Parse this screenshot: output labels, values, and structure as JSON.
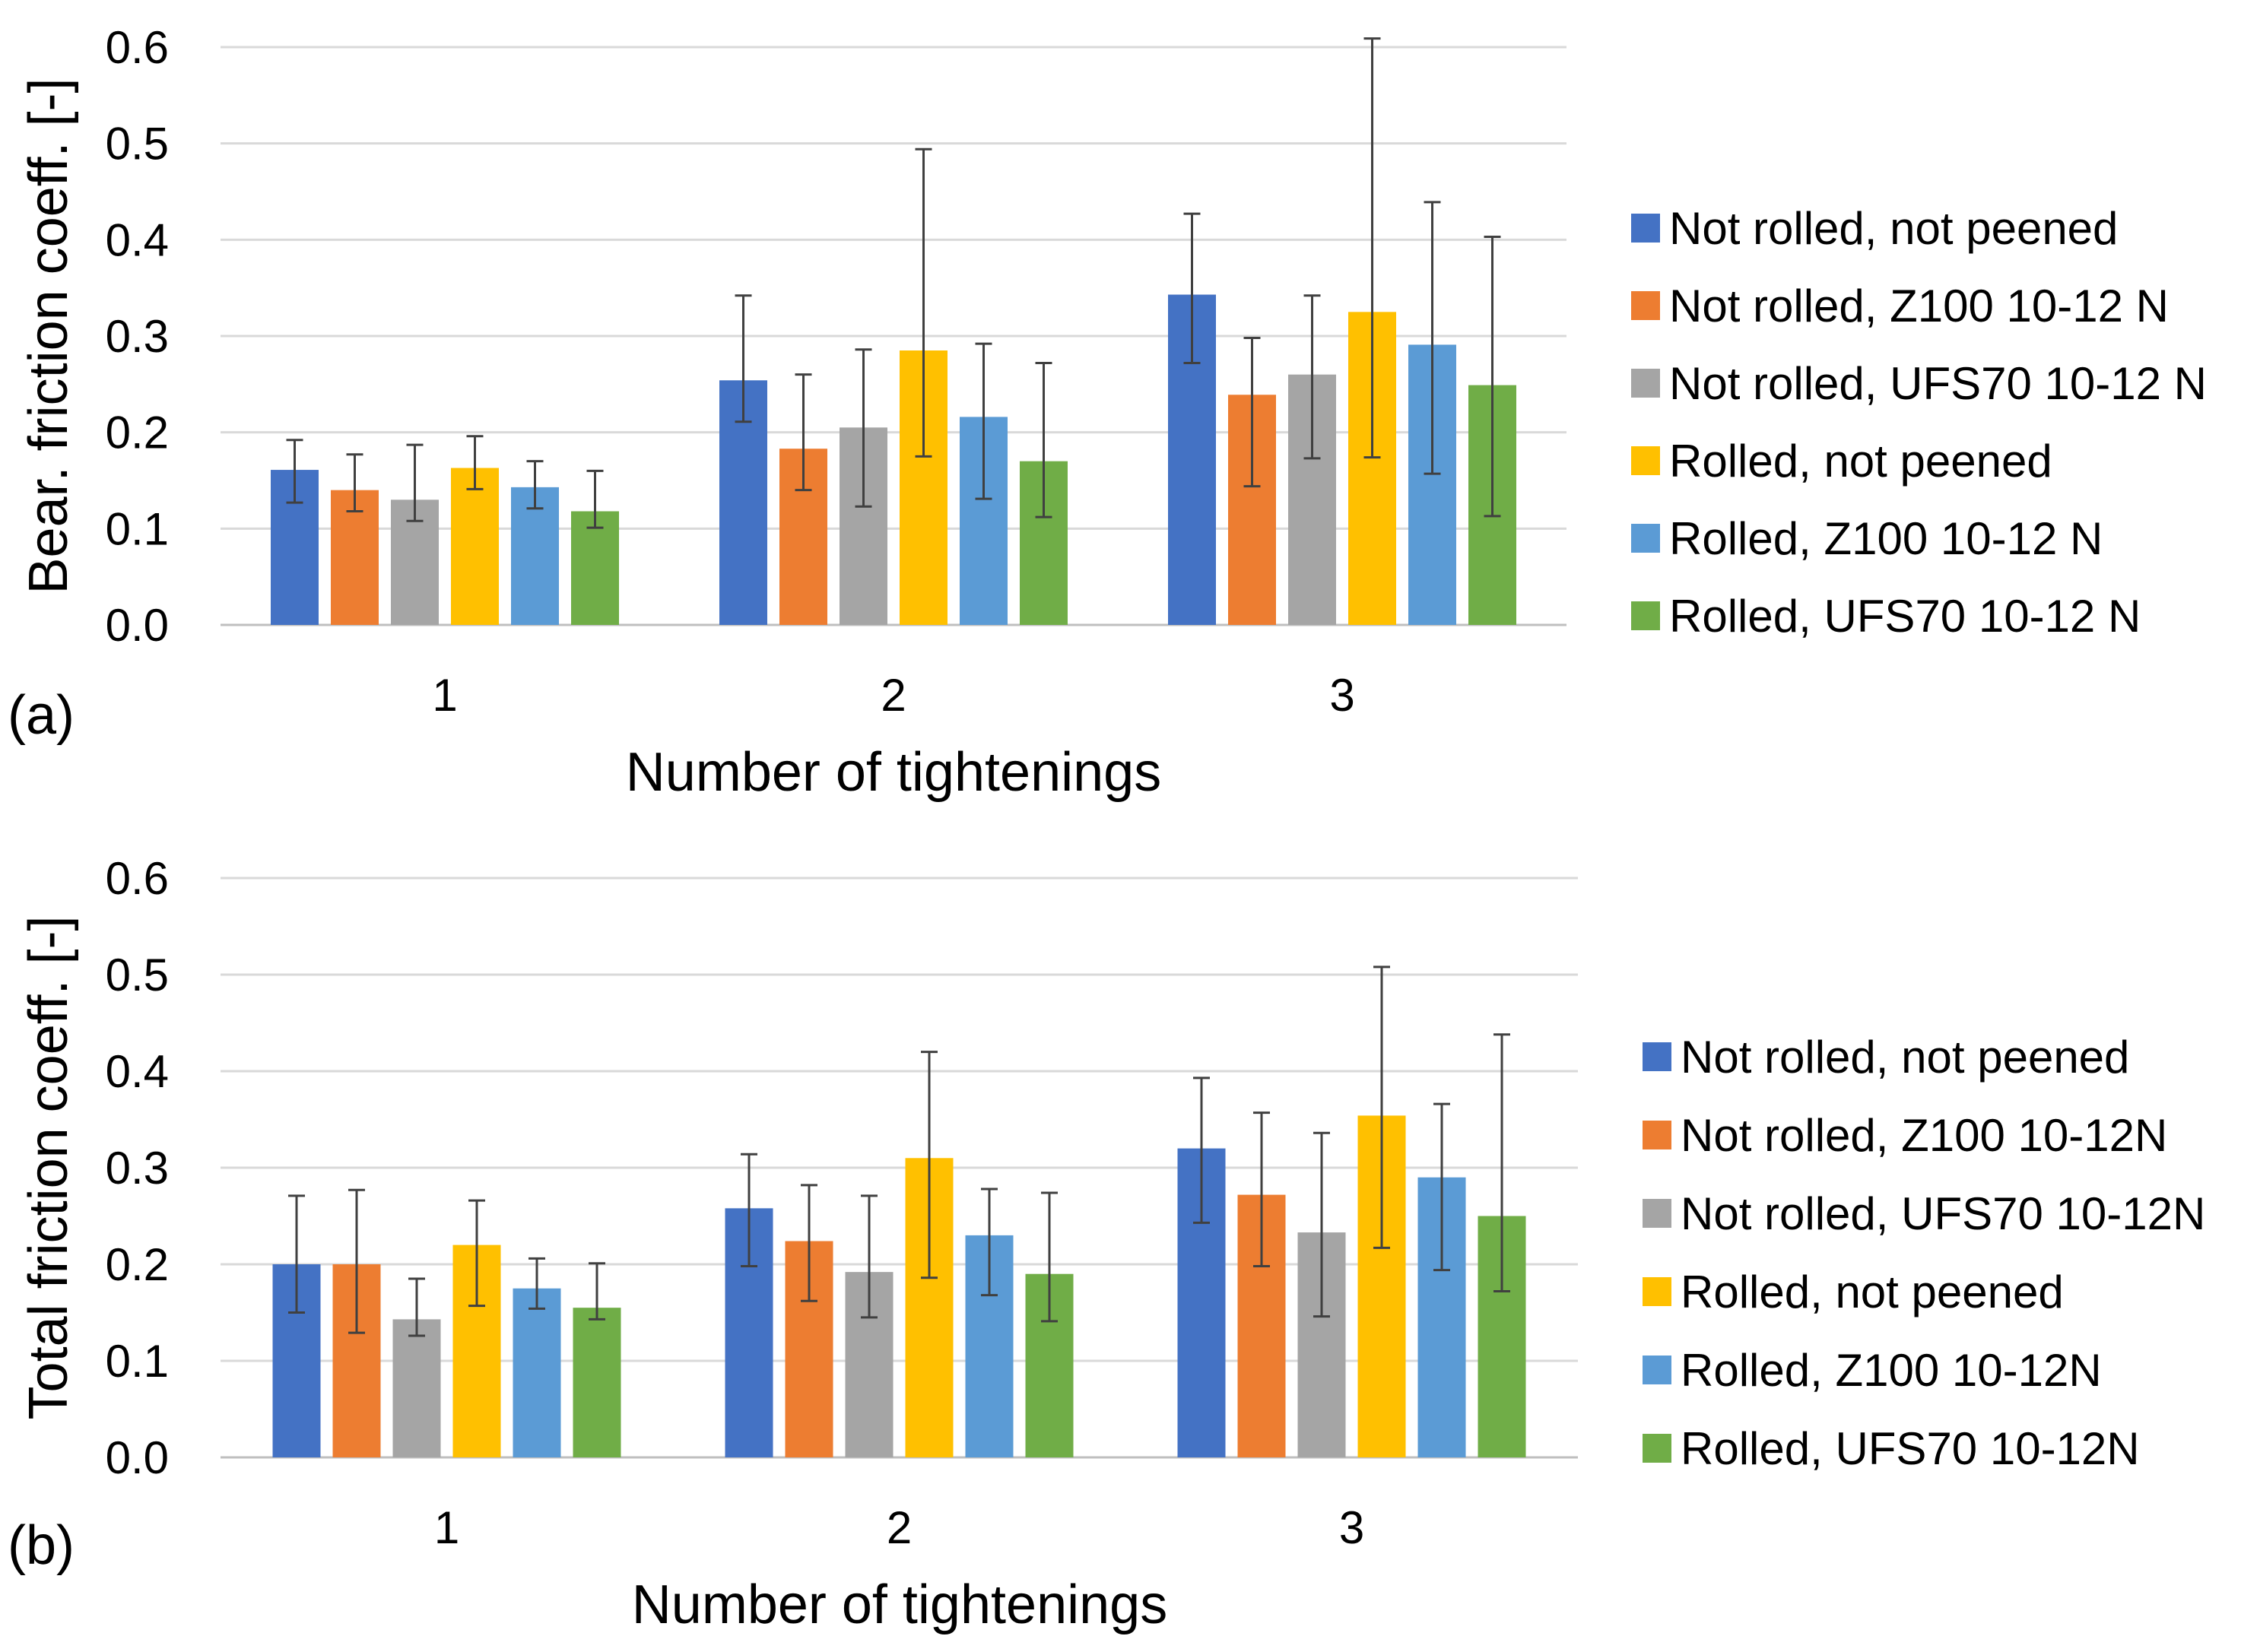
{
  "colors": {
    "not_rolled_not_peened": "#4472C4",
    "not_rolled_z100": "#ED7D31",
    "not_rolled_ufs70": "#A5A5A5",
    "rolled_not_peened": "#FFC000",
    "rolled_z100": "#5B9BD5",
    "rolled_ufs70": "#70AD47",
    "gridline": "#D9D9D9",
    "errorbar": "#404040"
  },
  "chart_data": [
    {
      "type": "bar",
      "panel_label": "(a)",
      "xlabel": "Number of tightenings",
      "ylabel": "Bear. friction coeff. [-]",
      "categories": [
        "1",
        "2",
        "3"
      ],
      "ylim": [
        0,
        0.6
      ],
      "yticks": [
        "0.0",
        "0.1",
        "0.2",
        "0.3",
        "0.4",
        "0.5",
        "0.6"
      ],
      "grid": true,
      "legend_position": "right",
      "series": [
        {
          "name": "Not rolled, not peened",
          "color": "#4472C4",
          "values": [
            0.161,
            0.254,
            0.343
          ],
          "error_low": [
            0.127,
            0.211,
            0.272
          ],
          "error_high": [
            0.192,
            0.342,
            0.427
          ]
        },
        {
          "name": "Not rolled, Z100 10-12 N",
          "color": "#ED7D31",
          "values": [
            0.14,
            0.183,
            0.239
          ],
          "error_low": [
            0.118,
            0.14,
            0.144
          ],
          "error_high": [
            0.177,
            0.26,
            0.298
          ]
        },
        {
          "name": "Not rolled, UFS70 10-12 N",
          "color": "#A5A5A5",
          "values": [
            0.13,
            0.205,
            0.26
          ],
          "error_low": [
            0.108,
            0.123,
            0.173
          ],
          "error_high": [
            0.187,
            0.286,
            0.342
          ]
        },
        {
          "name": "Rolled, not peened",
          "color": "#FFC000",
          "values": [
            0.163,
            0.285,
            0.325
          ],
          "error_low": [
            0.141,
            0.175,
            0.174
          ],
          "error_high": [
            0.196,
            0.494,
            0.609
          ]
        },
        {
          "name": "Rolled, Z100 10-12 N",
          "color": "#5B9BD5",
          "values": [
            0.143,
            0.216,
            0.291
          ],
          "error_low": [
            0.121,
            0.131,
            0.157
          ],
          "error_high": [
            0.17,
            0.292,
            0.439
          ]
        },
        {
          "name": "Rolled, UFS70 10-12 N",
          "color": "#70AD47",
          "values": [
            0.118,
            0.17,
            0.249
          ],
          "error_low": [
            0.101,
            0.112,
            0.113
          ],
          "error_high": [
            0.16,
            0.272,
            0.403
          ]
        }
      ]
    },
    {
      "type": "bar",
      "panel_label": "(b)",
      "xlabel": "Number of tightenings",
      "ylabel": "Total friction coeff. [-]",
      "categories": [
        "1",
        "2",
        "3"
      ],
      "ylim": [
        0,
        0.6
      ],
      "yticks": [
        "0.0",
        "0.1",
        "0.2",
        "0.3",
        "0.4",
        "0.5",
        "0.6"
      ],
      "grid": true,
      "legend_position": "right",
      "series": [
        {
          "name": "Not rolled, not peened",
          "color": "#4472C4",
          "values": [
            0.2,
            0.258,
            0.32
          ],
          "error_low": [
            0.15,
            0.198,
            0.243
          ],
          "error_high": [
            0.271,
            0.314,
            0.393
          ]
        },
        {
          "name": "Not rolled, Z100 10-12N",
          "color": "#ED7D31",
          "values": [
            0.2,
            0.224,
            0.272
          ],
          "error_low": [
            0.129,
            0.162,
            0.198
          ],
          "error_high": [
            0.277,
            0.282,
            0.357
          ]
        },
        {
          "name": "Not rolled, UFS70 10-12N",
          "color": "#A5A5A5",
          "values": [
            0.143,
            0.192,
            0.233
          ],
          "error_low": [
            0.126,
            0.145,
            0.146
          ],
          "error_high": [
            0.185,
            0.271,
            0.336
          ]
        },
        {
          "name": "Rolled, not peened",
          "color": "#FFC000",
          "values": [
            0.22,
            0.31,
            0.354
          ],
          "error_low": [
            0.157,
            0.186,
            0.217
          ],
          "error_high": [
            0.266,
            0.42,
            0.508
          ]
        },
        {
          "name": "Rolled, Z100 10-12N",
          "color": "#5B9BD5",
          "values": [
            0.175,
            0.23,
            0.29
          ],
          "error_low": [
            0.154,
            0.168,
            0.194
          ],
          "error_high": [
            0.206,
            0.278,
            0.366
          ]
        },
        {
          "name": "Rolled, UFS70 10-12N",
          "color": "#70AD47",
          "values": [
            0.155,
            0.19,
            0.25
          ],
          "error_low": [
            0.143,
            0.141,
            0.172
          ],
          "error_high": [
            0.201,
            0.274,
            0.438
          ]
        }
      ]
    }
  ]
}
